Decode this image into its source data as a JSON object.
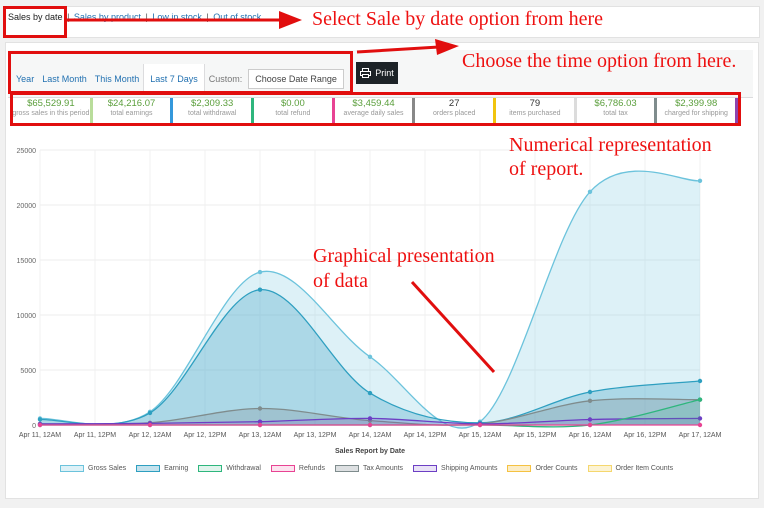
{
  "topnav": {
    "items": [
      "Sales by date",
      "Sales by product",
      "Low in stock",
      "Out of stock"
    ],
    "separator": "|"
  },
  "range": {
    "tabs": [
      "Year",
      "Last Month",
      "This Month",
      "Last 7 Days"
    ],
    "custom_label": "Custom:",
    "date_range_placeholder": "Choose Date Range",
    "print_label": "Print"
  },
  "stats": [
    {
      "value": "$65,529.91",
      "label": "gross sales in this period",
      "color": "#5b9f3c",
      "border": "#b9dd9b"
    },
    {
      "value": "$24,216.07",
      "label": "total earnings",
      "color": "#5b9f3c",
      "border": "#3498db"
    },
    {
      "value": "$2,309.33",
      "label": "total withdrawal",
      "color": "#5b9f3c",
      "border": "#2eb67d"
    },
    {
      "value": "$0.00",
      "label": "total refund",
      "color": "#5b9f3c",
      "border": "#e84393"
    },
    {
      "value": "$3,459.44",
      "label": "average daily sales",
      "color": "#5b9f3c",
      "border": "#888888"
    },
    {
      "value": "27",
      "label": "orders placed",
      "color": "#333333",
      "border": "#f1c40f"
    },
    {
      "value": "79",
      "label": "items purchased",
      "color": "#333333",
      "border": "#dcdcdc"
    },
    {
      "value": "$6,786.03",
      "label": "total tax",
      "color": "#5b9f3c",
      "border": "#7f8c8d"
    },
    {
      "value": "$2,399.98",
      "label": "charged for shipping",
      "color": "#5b9f3c",
      "border": "#8e44ad"
    }
  ],
  "annotations": {
    "a1": "Select Sale by date option from here",
    "a2": "Choose the time option from here.",
    "a3_line1": "Numerical representation",
    "a3_line2": "of report.",
    "a4_line1": "Graphical presentation",
    "a4_line2": "of data"
  },
  "chart_data": {
    "type": "area",
    "xlabel": "Sales Report by Date",
    "ylabel": "",
    "ylim": [
      0,
      25000
    ],
    "y_ticks": [
      "0",
      "5000",
      "10000",
      "15000",
      "20000",
      "25000"
    ],
    "x_ticks": [
      "Apr 11, 12AM",
      "Apr 11, 12PM",
      "Apr 12, 12AM",
      "Apr 12, 12PM",
      "Apr 13, 12AM",
      "Apr 13, 12PM",
      "Apr 14, 12AM",
      "Apr 14, 12PM",
      "Apr 15, 12AM",
      "Apr 15, 12PM",
      "Apr 16, 12AM",
      "Apr 16, 12PM",
      "Apr 17, 12AM"
    ],
    "x": [
      "Apr 11, 12AM",
      "Apr 12, 12AM",
      "Apr 13, 12AM",
      "Apr 14, 12AM",
      "Apr 15, 12AM",
      "Apr 16, 12AM",
      "Apr 17, 12AM"
    ],
    "legend_position": "bottom",
    "series": [
      {
        "name": "Gross Sales",
        "values": [
          600,
          1200,
          13900,
          6200,
          300,
          21200,
          22200
        ],
        "color": "#6cc3dc",
        "fill": "rgba(120,200,225,0.25)"
      },
      {
        "name": "Earning",
        "values": [
          500,
          1100,
          12300,
          2900,
          200,
          3000,
          4000
        ],
        "color": "#2e9fc0",
        "fill": "rgba(60,160,195,0.30)"
      },
      {
        "name": "Withdrawal",
        "values": [
          0,
          0,
          0,
          0,
          0,
          0,
          2309
        ],
        "color": "#2eb67d",
        "fill": "rgba(46,182,125,0.15)"
      },
      {
        "name": "Refunds",
        "values": [
          0,
          0,
          0,
          0,
          0,
          0,
          0
        ],
        "color": "#e84393",
        "fill": "rgba(232,67,147,0.15)"
      },
      {
        "name": "Tax Amounts",
        "values": [
          100,
          200,
          1500,
          400,
          100,
          2200,
          2300
        ],
        "color": "#7f8c8d",
        "fill": "rgba(120,130,140,0.25)"
      },
      {
        "name": "Shipping Amounts",
        "values": [
          100,
          150,
          300,
          600,
          100,
          500,
          600
        ],
        "color": "#6c3fc4",
        "fill": "rgba(108,63,196,0.15)"
      },
      {
        "name": "Order Counts",
        "values": [
          2,
          3,
          7,
          4,
          1,
          5,
          5
        ],
        "color": "#f5c242",
        "fill": "rgba(245,194,66,0.3)"
      },
      {
        "name": "Order Item Counts",
        "values": [
          5,
          8,
          20,
          12,
          3,
          15,
          16
        ],
        "color": "#f5d76e",
        "fill": "rgba(245,215,110,0.3)"
      }
    ]
  }
}
